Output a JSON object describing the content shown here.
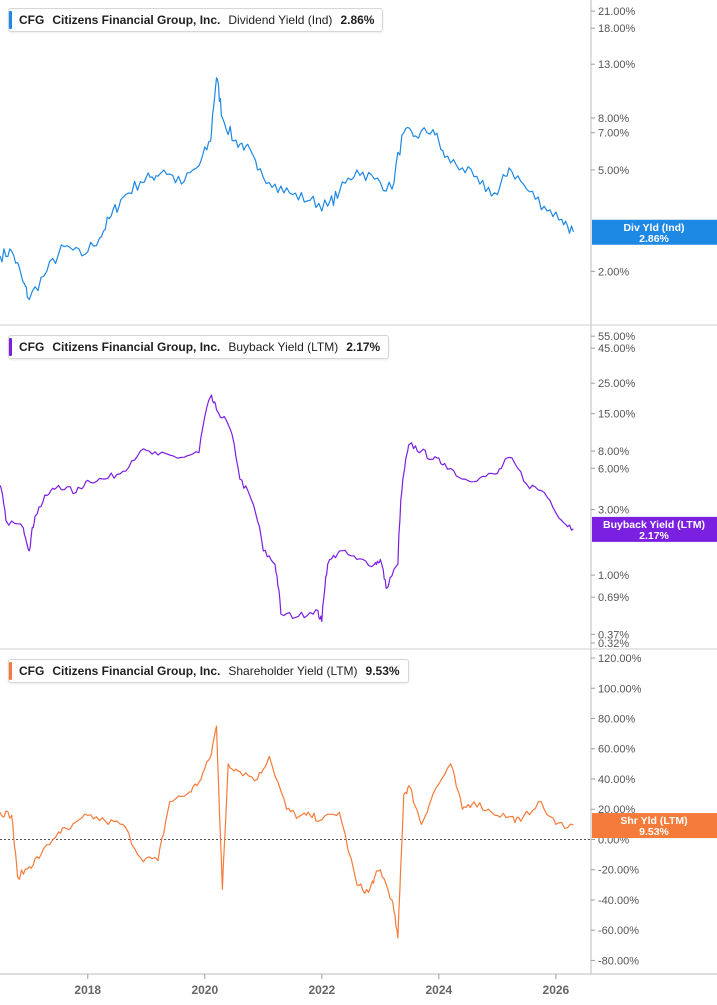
{
  "panels": [
    {
      "ticker": "CFG",
      "company": "Citizens Financial Group, Inc.",
      "metric": "Dividend Yield (Ind)",
      "value": "2.86%",
      "color": "#1e88e5",
      "scale": "log",
      "y_ticks": [
        "21.00%",
        "18.00%",
        "13.00%",
        "8.00%",
        "7.00%",
        "5.00%",
        "2.00%"
      ],
      "y_tick_values": [
        21,
        18,
        13,
        8,
        7,
        5,
        2
      ],
      "marker": {
        "line1": "Div Yld (Ind)",
        "line2": "2.86%"
      }
    },
    {
      "ticker": "CFG",
      "company": "Citizens Financial Group, Inc.",
      "metric": "Buyback Yield (LTM)",
      "value": "2.17%",
      "color": "#7b1fe0",
      "scale": "log",
      "y_ticks": [
        "55.00%",
        "45.00%",
        "25.00%",
        "15.00%",
        "8.00%",
        "6.00%",
        "3.00%",
        "1.00%",
        "0.69%",
        "0.37%",
        "0.32%"
      ],
      "y_tick_values": [
        55,
        45,
        25,
        15,
        8,
        6,
        3,
        1,
        0.69,
        0.37,
        0.32
      ],
      "marker": {
        "line1": "Buyback Yield (LTM)",
        "line2": "2.17%"
      }
    },
    {
      "ticker": "CFG",
      "company": "Citizens Financial Group, Inc.",
      "metric": "Shareholder Yield (LTM)",
      "value": "9.53%",
      "color": "#f47b3a",
      "scale": "linear",
      "y_ticks": [
        "120.00%",
        "100.00%",
        "80.00%",
        "60.00%",
        "40.00%",
        "20.00%",
        "0.00%",
        "-20.00%",
        "-40.00%",
        "-60.00%",
        "-80.00%"
      ],
      "y_tick_values": [
        120,
        100,
        80,
        60,
        40,
        20,
        0,
        -20,
        -40,
        -60,
        -80
      ],
      "marker": {
        "line1": "Shr Yld (LTM)",
        "line2": "9.53%"
      }
    }
  ],
  "x_ticks": [
    "2018",
    "2020",
    "2022",
    "2024",
    "2026"
  ],
  "chart_data": [
    {
      "type": "line",
      "title": "CFG Citizens Financial Group, Inc. Dividend Yield (Ind) 2.86%",
      "y_scale": "log",
      "ylim": [
        1.3,
        22
      ],
      "xlim": [
        2016.5,
        2026.6
      ],
      "series": [
        {
          "name": "Dividend Yield (Ind)",
          "x": [
            2016.5,
            2016.7,
            2016.9,
            2017.0,
            2017.3,
            2017.6,
            2017.9,
            2018.2,
            2018.4,
            2018.6,
            2018.9,
            2019.1,
            2019.3,
            2019.6,
            2019.9,
            2020.1,
            2020.2,
            2020.3,
            2020.5,
            2020.7,
            2020.9,
            2021.2,
            2021.5,
            2021.8,
            2022.1,
            2022.3,
            2022.6,
            2022.9,
            2023.2,
            2023.4,
            2023.6,
            2023.9,
            2024.1,
            2024.4,
            2024.7,
            2025.0,
            2025.2,
            2025.5,
            2025.8,
            2026.1,
            2026.3
          ],
          "values": [
            2.3,
            2.4,
            1.8,
            1.55,
            2.0,
            2.5,
            2.3,
            2.7,
            3.3,
            3.9,
            4.5,
            4.7,
            5.0,
            4.4,
            5.2,
            6.5,
            11.5,
            8.0,
            6.5,
            6.2,
            5.0,
            4.4,
            4.0,
            3.8,
            3.6,
            4.1,
            5.0,
            4.6,
            4.2,
            7.0,
            6.8,
            7.2,
            5.6,
            5.1,
            4.4,
            4.0,
            5.1,
            4.2,
            3.6,
            3.2,
            2.86
          ]
        }
      ]
    },
    {
      "type": "line",
      "title": "CFG Citizens Financial Group, Inc. Buyback Yield (LTM) 2.17%",
      "y_scale": "log",
      "ylim": [
        0.32,
        60
      ],
      "xlim": [
        2016.5,
        2026.6
      ],
      "series": [
        {
          "name": "Buyback Yield (LTM)",
          "x": [
            2016.5,
            2016.6,
            2016.9,
            2017.0,
            2017.1,
            2017.3,
            2017.5,
            2017.8,
            2018.0,
            2018.3,
            2018.6,
            2018.9,
            2019.2,
            2019.6,
            2019.9,
            2020.1,
            2020.2,
            2020.4,
            2020.6,
            2020.8,
            2021.0,
            2021.2,
            2021.3,
            2021.6,
            2021.9,
            2022.0,
            2022.1,
            2022.3,
            2022.6,
            2022.9,
            2023.0,
            2023.1,
            2023.3,
            2023.4,
            2023.5,
            2023.7,
            2023.9,
            2024.1,
            2024.4,
            2024.7,
            2025.0,
            2025.2,
            2025.5,
            2025.8,
            2026.1,
            2026.3
          ],
          "values": [
            4.5,
            2.5,
            2.2,
            1.5,
            2.7,
            3.8,
            4.5,
            4.0,
            4.9,
            5.0,
            5.7,
            8.0,
            7.5,
            7.2,
            7.8,
            20.0,
            16.0,
            12.5,
            5.0,
            3.5,
            1.5,
            1.2,
            0.52,
            0.5,
            0.56,
            0.46,
            1.2,
            1.5,
            1.3,
            1.2,
            1.3,
            0.8,
            1.2,
            5.5,
            9.0,
            8.0,
            7.0,
            6.5,
            5.0,
            5.1,
            5.5,
            7.2,
            4.6,
            4.0,
            2.5,
            2.17
          ]
        }
      ]
    },
    {
      "type": "line",
      "title": "CFG Citizens Financial Group, Inc. Shareholder Yield (LTM) 9.53%",
      "y_scale": "linear",
      "ylim": [
        -85,
        122
      ],
      "xlim": [
        2016.5,
        2026.6
      ],
      "series": [
        {
          "name": "Shareholder Yield (LTM)",
          "x": [
            2016.5,
            2016.7,
            2016.8,
            2017.0,
            2017.2,
            2017.5,
            2017.7,
            2018.0,
            2018.3,
            2018.6,
            2018.9,
            2019.2,
            2019.4,
            2019.7,
            2019.9,
            2020.1,
            2020.2,
            2020.3,
            2020.4,
            2020.6,
            2020.9,
            2021.1,
            2021.4,
            2021.6,
            2021.8,
            2022.0,
            2022.3,
            2022.6,
            2022.8,
            2022.9,
            2023.0,
            2023.2,
            2023.3,
            2023.4,
            2023.5,
            2023.7,
            2023.9,
            2024.2,
            2024.4,
            2024.6,
            2024.9,
            2025.2,
            2025.4,
            2025.7,
            2026.0,
            2026.3
          ],
          "values": [
            18,
            16,
            -25,
            -18,
            -10,
            5,
            7,
            16,
            12,
            10,
            -12,
            -14,
            25,
            30,
            38,
            55,
            75,
            -33,
            50,
            45,
            40,
            55,
            20,
            15,
            16,
            13,
            18,
            -30,
            -35,
            -25,
            -20,
            -40,
            -65,
            30,
            35,
            10,
            30,
            50,
            20,
            25,
            18,
            15,
            12,
            25,
            10,
            9.53
          ]
        }
      ]
    }
  ]
}
